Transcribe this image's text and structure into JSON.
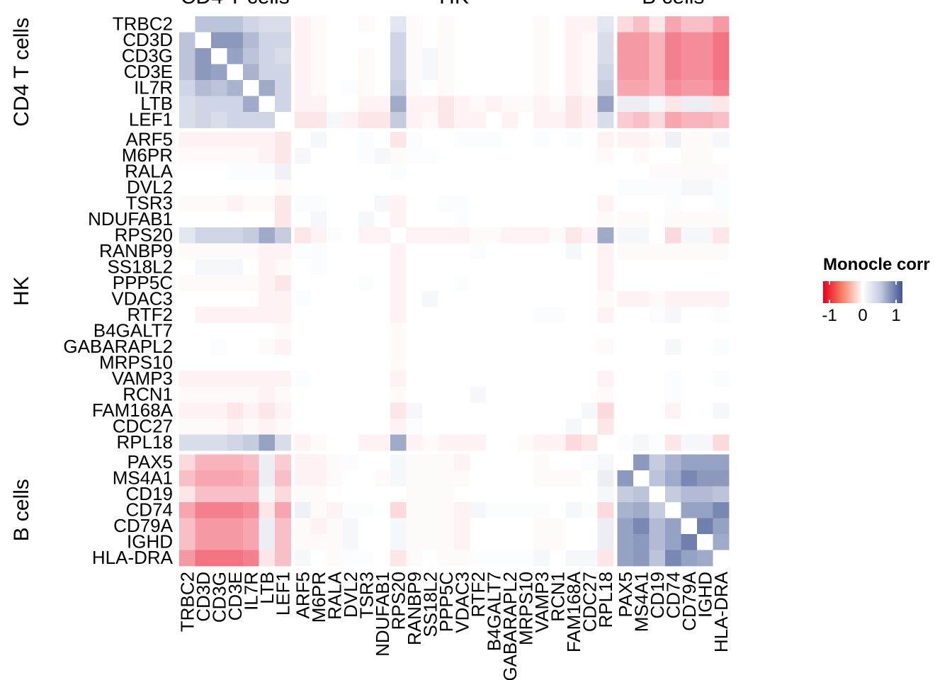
{
  "chart_data": {
    "type": "heatmap",
    "genes": [
      "TRBC2",
      "CD3D",
      "CD3G",
      "CD3E",
      "IL7R",
      "LTB",
      "LEF1",
      "ARF5",
      "M6PR",
      "RALA",
      "DVL2",
      "TSR3",
      "NDUFAB1",
      "RPS20",
      "RANBP9",
      "SS18L2",
      "PPP5C",
      "VDAC3",
      "RTF2",
      "B4GALT7",
      "GABARAPL2",
      "MRPS10",
      "VAMP3",
      "RCN1",
      "FAM168A",
      "CDC27",
      "RPL18",
      "PAX5",
      "MS4A1",
      "CD19",
      "CD74",
      "CD79A",
      "IGHD",
      "HLA-DRA"
    ],
    "groups": [
      {
        "name": "CD4 T cells",
        "size": 7
      },
      {
        "name": "HK",
        "size": 20
      },
      {
        "name": "B cells",
        "size": 7
      }
    ],
    "group_title_rows": [
      "CD4 T cells",
      "HK",
      "B cells"
    ],
    "color_scale": {
      "min": -1,
      "mid": 0,
      "max": 1,
      "low": "#e8001c",
      "mid_color": "#ffffff",
      "high": "#3f5591"
    },
    "legend": {
      "title": "Monocle corr",
      "ticks": [
        "-1",
        "0",
        "1"
      ]
    },
    "matrix": [
      [
        0,
        0.35,
        0.35,
        0.35,
        0.25,
        0.2,
        0.2,
        -0.05,
        -0.02,
        0,
        0,
        -0.02,
        0,
        0.15,
        -0.02,
        0,
        -0.02,
        0,
        0,
        0,
        0,
        0,
        -0.02,
        0,
        -0.05,
        -0.05,
        0.15,
        -0.15,
        -0.25,
        -0.1,
        -0.35,
        -0.25,
        -0.25,
        -0.4
      ],
      [
        0.35,
        0,
        0.6,
        0.6,
        0.4,
        0.25,
        0.25,
        -0.05,
        -0.02,
        0,
        0,
        0,
        0,
        0.25,
        -0.02,
        0,
        -0.02,
        0,
        0,
        0,
        0,
        0,
        -0.02,
        0,
        -0.05,
        -0.02,
        0.2,
        -0.4,
        -0.4,
        -0.3,
        -0.5,
        -0.45,
        -0.45,
        -0.55
      ],
      [
        0.35,
        0.6,
        0,
        0.55,
        0.35,
        0.25,
        0.2,
        -0.05,
        -0.02,
        0,
        0,
        -0.02,
        0,
        0.25,
        -0.02,
        0.05,
        -0.02,
        0,
        0,
        0,
        0,
        0,
        -0.02,
        0,
        -0.05,
        -0.02,
        0.2,
        -0.4,
        -0.4,
        -0.3,
        -0.5,
        -0.45,
        -0.45,
        -0.55
      ],
      [
        0.35,
        0.6,
        0.55,
        0,
        0.45,
        0.25,
        0.25,
        -0.05,
        -0.02,
        0,
        0,
        -0.02,
        0,
        0.25,
        -0.02,
        0.05,
        -0.02,
        0,
        0,
        0,
        0,
        0,
        -0.02,
        0,
        -0.05,
        -0.02,
        0.25,
        -0.4,
        -0.4,
        -0.3,
        -0.5,
        -0.45,
        -0.45,
        -0.55
      ],
      [
        0.25,
        0.4,
        0.35,
        0.45,
        0,
        0.5,
        0.25,
        -0.05,
        -0.02,
        0,
        0.02,
        -0.02,
        0,
        0.3,
        -0.02,
        0,
        -0.02,
        0,
        0,
        0,
        0,
        0,
        -0.02,
        0,
        -0.05,
        -0.02,
        0.3,
        -0.35,
        -0.35,
        -0.3,
        -0.45,
        -0.4,
        -0.4,
        -0.5
      ],
      [
        0.2,
        0.25,
        0.25,
        0.25,
        0.5,
        0,
        0.25,
        -0.05,
        -0.05,
        0,
        0,
        -0.05,
        -0.05,
        0.5,
        -0.05,
        -0.05,
        -0.1,
        -0.05,
        -0.02,
        -0.05,
        -0.02,
        -0.02,
        -0.05,
        -0.02,
        -0.1,
        -0.05,
        0.55,
        0.1,
        0.1,
        0.05,
        -0.1,
        0.1,
        0.1,
        -0.1
      ],
      [
        0.2,
        0.25,
        0.2,
        0.25,
        0.25,
        0.25,
        0,
        -0.1,
        -0.1,
        0.05,
        -0.05,
        -0.1,
        -0.1,
        0.3,
        -0.05,
        -0.02,
        -0.1,
        -0.05,
        -0.05,
        0,
        -0.05,
        0,
        -0.05,
        -0.05,
        -0.1,
        -0.05,
        0.2,
        -0.2,
        -0.25,
        -0.15,
        -0.35,
        -0.3,
        -0.3,
        -0.25
      ],
      [
        -0.05,
        -0.05,
        -0.05,
        -0.05,
        -0.05,
        -0.05,
        -0.1,
        0,
        0.05,
        0,
        0,
        0.02,
        0,
        -0.1,
        0.02,
        0,
        0,
        0.02,
        0.02,
        0.02,
        0,
        0,
        0.02,
        0,
        0.02,
        0,
        -0.05,
        -0.05,
        -0.05,
        -0.02,
        0.08,
        -0.02,
        -0.02,
        0.05
      ],
      [
        -0.02,
        -0.02,
        -0.02,
        -0.02,
        -0.02,
        -0.05,
        -0.1,
        0.05,
        0,
        0,
        0,
        0.02,
        0.05,
        -0.02,
        0.02,
        0.02,
        0,
        0,
        0,
        0,
        0,
        0,
        0,
        0,
        0,
        0,
        -0.02,
        0,
        -0.02,
        0,
        0,
        -0.02,
        -0.02,
        0
      ],
      [
        0,
        0,
        0,
        0.02,
        0.02,
        0.02,
        0.08,
        0,
        0,
        0,
        0,
        0,
        0,
        0.02,
        0,
        0,
        0,
        0,
        0,
        0,
        0,
        0,
        0,
        0,
        0,
        0,
        0,
        0,
        0,
        -0.02,
        -0.02,
        -0.02,
        -0.02,
        -0.02
      ],
      [
        0,
        0,
        0,
        0,
        0,
        0,
        -0.02,
        0,
        0,
        0,
        0,
        0,
        0,
        0,
        0,
        0,
        0,
        0,
        0,
        0,
        0,
        0,
        0,
        0,
        0,
        0,
        0,
        0.02,
        0.02,
        0.02,
        0.02,
        0.05,
        0.05,
        0.02
      ],
      [
        -0.02,
        -0.02,
        -0.02,
        -0.05,
        -0.02,
        -0.02,
        -0.1,
        0.02,
        0.02,
        0,
        0,
        0,
        0.05,
        -0.05,
        0,
        0,
        0.02,
        0.02,
        0,
        0,
        0,
        0,
        0,
        0,
        0,
        0,
        -0.05,
        0,
        0,
        0,
        0.02,
        0,
        0,
        0.02
      ],
      [
        0,
        0,
        0,
        0,
        0,
        0,
        -0.1,
        0,
        0.05,
        0,
        0,
        0.05,
        0,
        -0.05,
        0,
        0,
        0,
        0.02,
        0,
        0,
        0,
        0,
        0,
        0,
        0,
        0,
        -0.02,
        -0.02,
        -0.02,
        0,
        -0.02,
        -0.02,
        -0.02,
        -0.02
      ],
      [
        0.15,
        0.25,
        0.25,
        0.25,
        0.3,
        0.5,
        0.3,
        -0.1,
        -0.05,
        0.02,
        0,
        -0.05,
        -0.05,
        0,
        -0.05,
        -0.05,
        -0.05,
        -0.05,
        -0.02,
        -0.02,
        -0.05,
        -0.05,
        -0.05,
        -0.02,
        -0.1,
        -0.05,
        0.5,
        0.05,
        0.05,
        0,
        -0.15,
        0.05,
        0.05,
        -0.1
      ],
      [
        -0.02,
        -0.02,
        -0.02,
        -0.02,
        -0.02,
        -0.05,
        -0.05,
        0.02,
        0.02,
        0,
        0,
        0,
        0,
        -0.05,
        0,
        0,
        0,
        0,
        0.02,
        0,
        0,
        0,
        0,
        0,
        0.05,
        0,
        -0.05,
        -0.02,
        -0.02,
        -0.02,
        -0.02,
        -0.02,
        -0.02,
        -0.02
      ],
      [
        0,
        0.05,
        0.05,
        0.05,
        0,
        -0.05,
        -0.02,
        0,
        0.02,
        0,
        0,
        0,
        0,
        -0.05,
        0,
        0,
        0,
        0,
        0,
        0,
        0,
        0,
        0,
        0,
        0,
        0,
        -0.05,
        0,
        0,
        0,
        0,
        0,
        0,
        0
      ],
      [
        -0.02,
        -0.02,
        -0.02,
        -0.02,
        -0.02,
        -0.05,
        -0.1,
        0,
        0,
        0,
        0,
        0.02,
        0,
        -0.05,
        0,
        0,
        0,
        0.02,
        0,
        0,
        0,
        0,
        0,
        0,
        0,
        0,
        -0.05,
        0,
        0,
        0,
        0,
        0,
        0,
        0
      ],
      [
        0,
        0,
        0,
        0,
        0,
        -0.05,
        -0.05,
        0.02,
        0,
        0,
        0,
        0,
        0,
        -0.05,
        0,
        0.05,
        0,
        0,
        0,
        0,
        0,
        0,
        0,
        0,
        0,
        0,
        -0.02,
        -0.05,
        -0.05,
        -0.02,
        -0.05,
        -0.05,
        -0.05,
        -0.05
      ],
      [
        0,
        -0.05,
        -0.05,
        -0.05,
        -0.05,
        -0.05,
        -0.05,
        0,
        0,
        0,
        0,
        0,
        0,
        -0.05,
        0,
        0,
        0,
        0,
        0,
        0,
        0,
        0,
        0.02,
        0.02,
        0,
        0,
        -0.05,
        0,
        0,
        0.02,
        0.05,
        0,
        0,
        0.02
      ],
      [
        0,
        0,
        0,
        0,
        0,
        0,
        -0.02,
        0,
        0,
        0,
        0,
        0,
        0,
        -0.02,
        0,
        0,
        0,
        0,
        0,
        0,
        0,
        0,
        0,
        0,
        0,
        0,
        0,
        0,
        0,
        0,
        0,
        0,
        0,
        0
      ],
      [
        0,
        0,
        0.02,
        0,
        0,
        -0.02,
        -0.05,
        0,
        0,
        0,
        0,
        0,
        0,
        -0.02,
        0,
        0,
        0,
        0,
        0,
        0,
        0,
        0,
        0,
        0,
        0,
        0,
        -0.02,
        0,
        0,
        0,
        0.05,
        0,
        0,
        0.02
      ],
      [
        0,
        0,
        0,
        0,
        0,
        0,
        0,
        0,
        0,
        0,
        0,
        0,
        0,
        -0.02,
        0,
        0,
        0,
        0,
        0,
        0,
        0,
        0,
        0,
        0,
        0,
        0,
        0,
        0,
        0,
        0,
        0,
        0,
        0,
        0
      ],
      [
        -0.05,
        -0.05,
        -0.05,
        -0.05,
        -0.05,
        -0.05,
        -0.05,
        0.02,
        0,
        0,
        0,
        0,
        0,
        -0.05,
        0,
        0,
        0,
        0,
        0,
        0,
        0,
        0,
        0,
        0,
        0,
        0,
        -0.05,
        0,
        0,
        0,
        0.02,
        0,
        0,
        0.02
      ],
      [
        -0.02,
        -0.02,
        -0.02,
        -0.02,
        -0.02,
        -0.05,
        -0.02,
        0,
        0,
        0,
        0,
        0,
        0,
        -0.02,
        0,
        0,
        0,
        0,
        0.05,
        0,
        0,
        0,
        0,
        0,
        0,
        0,
        -0.02,
        0,
        0,
        0,
        0.02,
        0,
        0,
        0
      ],
      [
        -0.05,
        -0.05,
        -0.05,
        -0.1,
        -0.05,
        -0.1,
        -0.05,
        0,
        0,
        0,
        0,
        0,
        0,
        -0.1,
        0.05,
        0,
        0,
        0,
        0,
        0,
        0,
        0,
        0,
        0,
        0,
        0.05,
        -0.15,
        0,
        0,
        0,
        -0.05,
        0,
        0,
        0.05
      ],
      [
        -0.02,
        -0.02,
        -0.02,
        -0.05,
        -0.02,
        -0.05,
        -0.02,
        0,
        0,
        0,
        0,
        0,
        0,
        -0.05,
        0.02,
        0,
        0,
        0,
        0,
        0,
        0,
        0,
        0,
        0,
        0.05,
        0,
        -0.1,
        0,
        0,
        0,
        0,
        0,
        0,
        0
      ],
      [
        0.2,
        0.2,
        0.2,
        0.25,
        0.3,
        0.55,
        0.2,
        -0.05,
        -0.02,
        0,
        0,
        -0.05,
        -0.05,
        0.5,
        -0.05,
        -0.02,
        -0.05,
        -0.05,
        -0.05,
        0,
        0,
        -0.02,
        -0.05,
        -0.05,
        -0.15,
        -0.1,
        0,
        0.02,
        0.05,
        0.02,
        -0.1,
        0.05,
        0.05,
        -0.15
      ],
      [
        -0.15,
        -0.3,
        -0.3,
        -0.3,
        -0.25,
        0.1,
        -0.2,
        -0.05,
        -0.05,
        -0.02,
        0.02,
        0,
        0,
        0.05,
        -0.02,
        -0.02,
        -0.02,
        -0.05,
        0,
        0,
        0,
        0,
        -0.02,
        0,
        0,
        0.02,
        0.05,
        0,
        0.6,
        0.3,
        0.45,
        0.55,
        0.55,
        0.55
      ],
      [
        -0.25,
        -0.35,
        -0.35,
        -0.35,
        -0.3,
        0.1,
        -0.25,
        -0.05,
        -0.05,
        -0.02,
        0,
        0,
        -0.02,
        0.05,
        -0.02,
        -0.02,
        -0.02,
        -0.02,
        0,
        0,
        0,
        0,
        -0.02,
        -0.02,
        -0.02,
        0,
        0.1,
        0.6,
        0,
        0.35,
        0.5,
        0.7,
        0.6,
        0.6
      ],
      [
        -0.1,
        -0.25,
        -0.25,
        -0.25,
        -0.25,
        0.05,
        -0.15,
        -0.02,
        -0.02,
        0,
        0,
        0,
        0,
        0,
        -0.02,
        -0.02,
        -0.02,
        0,
        0,
        0,
        0,
        0,
        0,
        0,
        0,
        0,
        0.05,
        0.3,
        0.35,
        0,
        0.3,
        0.4,
        0.4,
        0.35
      ],
      [
        -0.35,
        -0.5,
        -0.5,
        -0.5,
        -0.45,
        -0.1,
        -0.35,
        0.08,
        -0.02,
        -0.05,
        0.02,
        0.02,
        0,
        -0.15,
        -0.02,
        -0.02,
        -0.02,
        -0.05,
        0.05,
        0.02,
        0.02,
        0.02,
        0.02,
        0,
        0.05,
        0.02,
        -0.15,
        0.45,
        0.5,
        0.3,
        0,
        0.55,
        0.55,
        0.7
      ],
      [
        -0.25,
        -0.4,
        -0.4,
        -0.4,
        -0.35,
        0.1,
        -0.25,
        -0.02,
        -0.05,
        -0.02,
        0.05,
        0,
        0,
        0.05,
        -0.02,
        -0.02,
        -0.02,
        -0.05,
        0,
        0,
        0,
        0,
        -0.02,
        -0.02,
        0,
        0,
        0.1,
        0.55,
        0.7,
        0.4,
        0.55,
        0,
        0.75,
        0.55
      ],
      [
        -0.25,
        -0.4,
        -0.4,
        -0.4,
        -0.35,
        0.1,
        -0.25,
        -0.02,
        -0.02,
        -0.02,
        0.05,
        0,
        0,
        0.05,
        -0.02,
        -0.02,
        -0.02,
        -0.05,
        0,
        0,
        0,
        0,
        -0.02,
        -0.02,
        0,
        0,
        0.1,
        0.55,
        0.6,
        0.4,
        0.55,
        0.75,
        0,
        0.5
      ],
      [
        -0.4,
        -0.55,
        -0.55,
        -0.55,
        -0.5,
        -0.1,
        -0.25,
        0.05,
        0,
        -0.02,
        0.02,
        0.02,
        0,
        -0.1,
        -0.02,
        0,
        -0.02,
        -0.02,
        0.02,
        0.02,
        0.02,
        0.02,
        0.05,
        0,
        0.05,
        0.05,
        -0.1,
        0.55,
        0.6,
        0.35,
        0.7,
        0.55,
        0.5,
        0
      ]
    ]
  }
}
